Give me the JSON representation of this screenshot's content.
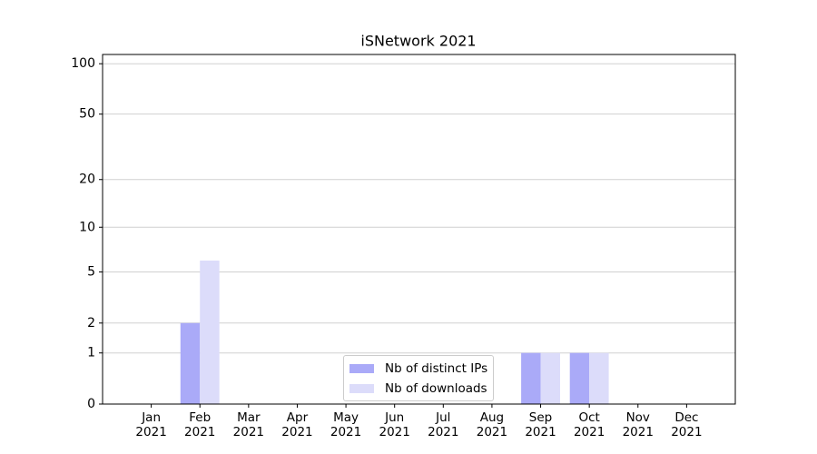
{
  "chart_data": {
    "type": "bar",
    "title": "iSNetwork 2021",
    "categories": [
      "Jan 2021",
      "Feb 2021",
      "Mar 2021",
      "Apr 2021",
      "May 2021",
      "Jun 2021",
      "Jul 2021",
      "Aug 2021",
      "Sep 2021",
      "Oct 2021",
      "Nov 2021",
      "Dec 2021"
    ],
    "series": [
      {
        "name": "Nb of distinct IPs",
        "color": "#aaaaf8",
        "values": [
          0,
          2,
          0,
          0,
          0,
          0,
          0,
          0,
          1,
          1,
          0,
          0
        ]
      },
      {
        "name": "Nb of downloads",
        "color": "#dcdcfa",
        "values": [
          0,
          6,
          0,
          0,
          0,
          0,
          0,
          0,
          1,
          1,
          0,
          0
        ]
      }
    ],
    "yscale": "log(x+1)",
    "ylim": [
      0,
      113.5
    ],
    "yticks": [
      0,
      1,
      2,
      5,
      10,
      20,
      50,
      100
    ],
    "grid": true,
    "legend": "lower center"
  }
}
